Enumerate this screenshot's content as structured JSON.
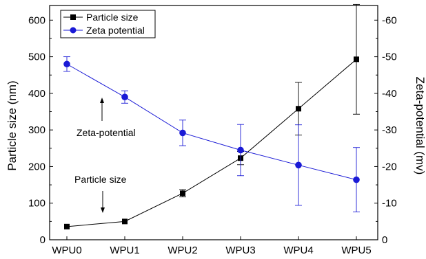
{
  "chart_data": {
    "type": "line",
    "categories": [
      "WPU0",
      "WPU1",
      "WPU2",
      "WPU3",
      "WPU4",
      "WPU5"
    ],
    "series": [
      {
        "name": "Particle size",
        "axis": "left",
        "color": "#000000",
        "marker": "square",
        "values": [
          36,
          50,
          127,
          223,
          358,
          493
        ],
        "errors": [
          null,
          null,
          10,
          18,
          72,
          150
        ]
      },
      {
        "name": "Zeta potential",
        "axis": "right",
        "color": "#1a1ad6",
        "marker": "circle",
        "values": [
          -48,
          -39,
          -29.2,
          -24.5,
          -20.4,
          -16.4
        ],
        "errors": [
          2,
          1.7,
          3.5,
          7,
          11,
          8.8
        ]
      }
    ],
    "ylabel": "Particle size (nm)",
    "y2label": "Zeta-potential (mv)",
    "ylim": [
      0,
      640
    ],
    "y2lim": [
      0,
      -64
    ],
    "yticks": [
      "0",
      "100",
      "200",
      "300",
      "400",
      "500",
      "600"
    ],
    "y2ticks": [
      "0",
      "-10",
      "-20",
      "-30",
      "-40",
      "-50",
      "-60"
    ],
    "legend_position": "top-left",
    "annotations": [
      {
        "text": "Zeta-potential",
        "arrow": "up"
      },
      {
        "text": "Particle size",
        "arrow": "down"
      }
    ]
  }
}
